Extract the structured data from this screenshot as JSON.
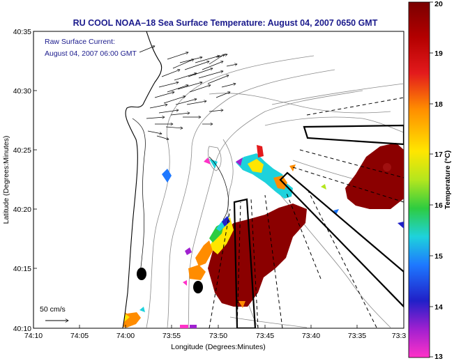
{
  "title": "RU COOL  NOAA–18  Sea Surface Temperature:  August 04, 2007 0650 GMT",
  "current_label_line1": "Raw Surface Current:",
  "current_label_line2": "August 04, 2007 06:00 GMT",
  "scale_label": "50 cm/s",
  "xlabel": "Longitude (Degrees:Minutes)",
  "ylabel": "Latitude (Degrees:Minutes)",
  "colorbar_label": "Temperature (°C)",
  "x_ticks": [
    "74:10",
    "74:05",
    "74:00",
    "73:55",
    "73:50",
    "73:45",
    "73:40",
    "73:35",
    "73:3"
  ],
  "y_ticks": [
    "40:35",
    "40:30",
    "40:25",
    "40:20",
    "40:15",
    "40:10"
  ],
  "colorbar_ticks": [
    "20",
    "19",
    "18",
    "17",
    "16",
    "15",
    "14",
    "13"
  ],
  "colors": {
    "title": "#1a1a8c",
    "land": "#ffffff",
    "sst_warm": "#8b0000",
    "contour": "#8a8a8a"
  },
  "colorbar_range": [
    13,
    20
  ]
}
